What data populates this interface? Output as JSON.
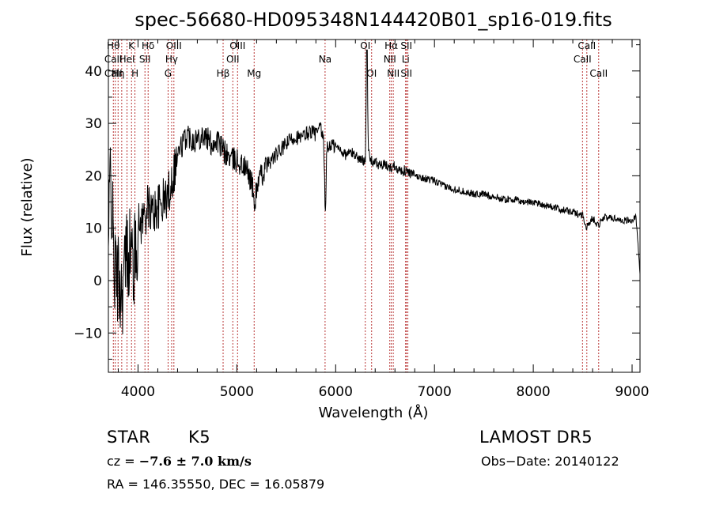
{
  "chart_data": {
    "type": "line",
    "title": "spec-56680-HD095348N144420B01_sp16-019.fits",
    "xlabel": "Wavelength (Å)",
    "ylabel": "Flux (relative)",
    "xlim": [
      3700,
      9080
    ],
    "ylim": [
      -17.5,
      46
    ],
    "xticks": [
      4000,
      5000,
      6000,
      7000,
      8000,
      9000
    ],
    "yticks": [
      -10,
      0,
      10,
      20,
      30,
      40
    ],
    "grid": false,
    "series_color": "#000000",
    "line_color": "#b22222",
    "spectrum_anchors": {
      "x": [
        3700,
        3720,
        3760,
        3800,
        3840,
        3880,
        3920,
        3960,
        4000,
        4050,
        4100,
        4150,
        4200,
        4250,
        4300,
        4350,
        4400,
        4450,
        4500,
        4550,
        4600,
        4650,
        4700,
        4750,
        4800,
        4850,
        4900,
        4950,
        5000,
        5050,
        5100,
        5150,
        5180,
        5200,
        5250,
        5300,
        5350,
        5400,
        5450,
        5500,
        5550,
        5600,
        5650,
        5700,
        5750,
        5800,
        5850,
        5880,
        5895,
        5910,
        5950,
        6000,
        6050,
        6100,
        6150,
        6200,
        6250,
        6280,
        6300,
        6315,
        6330,
        6350,
        6400,
        6450,
        6500,
        6550,
        6600,
        6650,
        6700,
        6750,
        6800,
        6900,
        7000,
        7100,
        7200,
        7300,
        7400,
        7500,
        7600,
        7700,
        7800,
        7900,
        8000,
        8100,
        8200,
        8300,
        8400,
        8500,
        8540,
        8600,
        8660,
        8700,
        8800,
        8900,
        9000,
        9040,
        9080
      ],
      "y": [
        5,
        22,
        2,
        0,
        -2,
        5,
        6,
        3,
        10,
        12,
        14,
        13,
        14,
        15,
        16,
        20,
        24,
        26,
        28,
        27,
        27,
        28,
        27,
        26,
        27,
        25,
        24,
        23,
        23,
        22,
        21,
        19,
        14,
        18,
        20,
        22,
        23,
        24,
        25,
        26,
        27,
        27.5,
        27,
        28,
        28.5,
        28,
        29,
        26,
        12,
        25,
        26,
        25.5,
        25,
        24,
        24.5,
        24,
        23,
        23,
        23.5,
        44,
        25,
        23,
        22.5,
        22,
        22,
        21.5,
        22,
        21,
        21,
        20.5,
        20,
        19.5,
        19,
        18,
        17.5,
        17,
        16.5,
        16.5,
        16,
        15.5,
        15.5,
        15,
        15,
        14.5,
        14,
        13.5,
        13,
        12.5,
        10,
        12,
        10.5,
        12,
        12,
        11.5,
        11.5,
        12,
        1
      ]
    },
    "lines": [
      {
        "wl": 3750,
        "labels": [
          "Hθ",
          "CaII",
          "CaII"
        ]
      },
      {
        "wl": 3770
      },
      {
        "wl": 3798,
        "labels": [
          "",
          "",
          "Hη"
        ]
      },
      {
        "wl": 3835
      },
      {
        "wl": 3889,
        "labels": [
          "",
          "HeI",
          ""
        ]
      },
      {
        "wl": 3934,
        "labels": [
          "K",
          "",
          ""
        ]
      },
      {
        "wl": 3969,
        "labels": [
          "",
          "",
          "H"
        ]
      },
      {
        "wl": 4070,
        "labels": [
          "",
          "SII",
          ""
        ]
      },
      {
        "wl": 4102,
        "labels": [
          "Hδ",
          "",
          ""
        ]
      },
      {
        "wl": 4304,
        "labels": [
          "",
          "",
          "G"
        ]
      },
      {
        "wl": 4340,
        "labels": [
          "",
          "Hγ",
          ""
        ]
      },
      {
        "wl": 4363,
        "labels": [
          "OIII",
          "",
          ""
        ]
      },
      {
        "wl": 4861,
        "labels": [
          "",
          "",
          "Hβ"
        ]
      },
      {
        "wl": 4959,
        "labels": [
          "",
          "OII",
          ""
        ]
      },
      {
        "wl": 5007,
        "labels": [
          "OIII",
          "",
          ""
        ]
      },
      {
        "wl": 5175,
        "labels": [
          "",
          "",
          "Mg"
        ]
      },
      {
        "wl": 5893,
        "labels": [
          "",
          "Na",
          ""
        ]
      },
      {
        "wl": 6300,
        "labels": [
          "OI",
          "",
          ""
        ]
      },
      {
        "wl": 6364,
        "labels": [
          "",
          "",
          "OI"
        ]
      },
      {
        "wl": 6548,
        "labels": [
          "",
          "NII",
          ""
        ]
      },
      {
        "wl": 6563,
        "labels": [
          "Hα",
          "",
          ""
        ]
      },
      {
        "wl": 6583,
        "labels": [
          "",
          "",
          "NII"
        ]
      },
      {
        "wl": 6708,
        "labels": [
          "",
          "Li",
          ""
        ]
      },
      {
        "wl": 6716,
        "labels": [
          "SII",
          "",
          "SII"
        ]
      },
      {
        "wl": 6731
      },
      {
        "wl": 8498,
        "labels": [
          "",
          "CaII",
          ""
        ]
      },
      {
        "wl": 8542,
        "labels": [
          "CaII",
          "",
          ""
        ]
      },
      {
        "wl": 8662,
        "labels": [
          "",
          "",
          "CaII"
        ]
      }
    ]
  },
  "info": {
    "object_class": "STAR",
    "subclass": "K5",
    "survey": "LAMOST DR5",
    "cz_prefix": "cz = ",
    "cz_value": "−7.6 ± 7.0 km/s",
    "obs_date": "Obs−Date: 20140122",
    "radec": "RA = 146.35550, DEC =  16.05879"
  }
}
